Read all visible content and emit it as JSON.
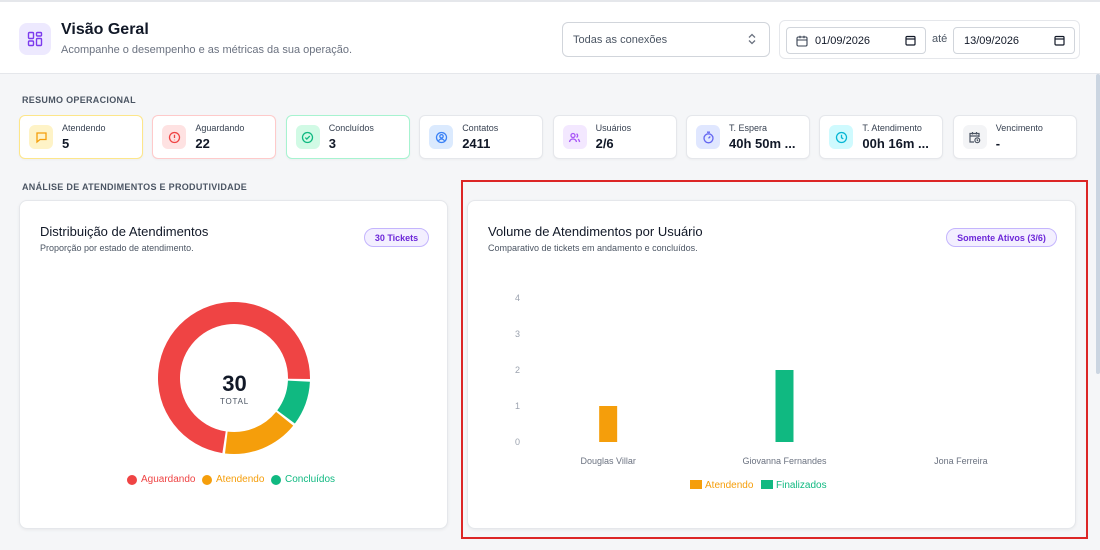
{
  "header": {
    "title": "Visão Geral",
    "subtitle": "Acompanhe o desempenho e as métricas da sua operação.",
    "connection_select": "Todas as conexões",
    "date_from": "01/09/2026",
    "date_separator": "até",
    "date_to": "13/09/2026"
  },
  "sections": {
    "summary": "RESUMO OPERACIONAL",
    "analysis": "ANÁLISE DE ATENDIMENTOS E PRODUTIVIDADE"
  },
  "stats": [
    {
      "label": "Atendendo",
      "value": "5",
      "icon": "message-icon",
      "color": "#f59e0b",
      "bg": "#fef3c7",
      "border": "#fde68a"
    },
    {
      "label": "Aguardando",
      "value": "22",
      "icon": "alert-icon",
      "color": "#ef4444",
      "bg": "#fee2e2",
      "border": "#fecaca"
    },
    {
      "label": "Concluídos",
      "value": "3",
      "icon": "check-circle-icon",
      "color": "#10b981",
      "bg": "#d1fae5",
      "border": "#a7f3d0"
    },
    {
      "label": "Contatos",
      "value": "2411",
      "icon": "contact-icon",
      "color": "#3b82f6",
      "bg": "#dbeafe",
      "border": "#e5e7eb"
    },
    {
      "label": "Usuários",
      "value": "2/6",
      "icon": "users-icon",
      "color": "#a855f7",
      "bg": "#f3e8ff",
      "border": "#e5e7eb"
    },
    {
      "label": "T. Espera",
      "value": "40h 50m ...",
      "icon": "timer-icon",
      "color": "#6366f1",
      "bg": "#e0e7ff",
      "border": "#e5e7eb"
    },
    {
      "label": "T. Atendimento",
      "value": "00h 16m ...",
      "icon": "clock-icon",
      "color": "#06b6d4",
      "bg": "#cffafe",
      "border": "#e5e7eb"
    },
    {
      "label": "Vencimento",
      "value": "-",
      "icon": "calendar-clock-icon",
      "color": "#4b5563",
      "bg": "#f3f4f6",
      "border": "#e5e7eb"
    }
  ],
  "distribution": {
    "title": "Distribuição de Atendimentos",
    "subtitle": "Proporção por estado de atendimento.",
    "badge": "30 Tickets",
    "total_value": "30",
    "total_label": "TOTAL"
  },
  "volume": {
    "title": "Volume de Atendimentos por Usuário",
    "subtitle": "Comparativo de tickets em andamento e concluídos.",
    "badge": "Somente Ativos (3/6)"
  },
  "chart_data": [
    {
      "type": "pie",
      "categories": [
        "Aguardando",
        "Atendendo",
        "Concluídos"
      ],
      "values": [
        22,
        5,
        3
      ],
      "colors": [
        "#ef4444",
        "#f59e0b",
        "#10b981"
      ],
      "legend": "bottom"
    },
    {
      "type": "bar",
      "categories": [
        "Douglas Villar",
        "Giovanna Fernandes",
        "Jona Ferreira"
      ],
      "series": [
        {
          "name": "Atendendo",
          "values": [
            1,
            0,
            0
          ],
          "color": "#f59e0b"
        },
        {
          "name": "Finalizados",
          "values": [
            0,
            2,
            0
          ],
          "color": "#10b981"
        }
      ],
      "yticks": [
        "0",
        "1",
        "2",
        "3",
        "4"
      ],
      "ylim": [
        0,
        4
      ],
      "grid": false,
      "legend": "bottom"
    }
  ]
}
